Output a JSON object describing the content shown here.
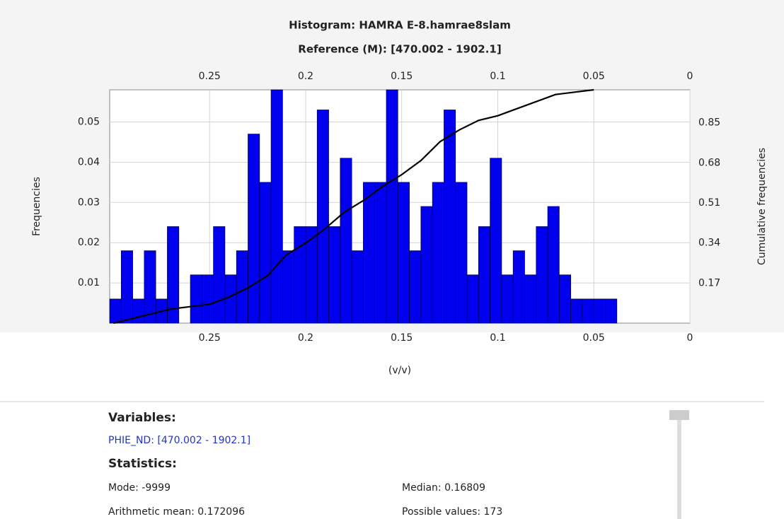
{
  "chart_data": {
    "type": "histogram",
    "title": "Histogram: HAMRA E-8.hamrae8slam",
    "subtitle": "Reference (M): [470.002 - 1902.1]",
    "xlabel": "(v/v)",
    "ylabel": "Frequencies",
    "y2label": "Cumulative frequencies",
    "bins": [
      0.302,
      0.296,
      0.29,
      0.284,
      0.278,
      0.272,
      0.266,
      0.26,
      0.254,
      0.248,
      0.242,
      0.236,
      0.23,
      0.224,
      0.218,
      0.212,
      0.206,
      0.2,
      0.194,
      0.188,
      0.182,
      0.176,
      0.17,
      0.164,
      0.158,
      0.152,
      0.146,
      0.14,
      0.134,
      0.128,
      0.122,
      0.116,
      0.11,
      0.104,
      0.098,
      0.092,
      0.086,
      0.08,
      0.074,
      0.068,
      0.062,
      0.056,
      0.05,
      0.044,
      0.038
    ],
    "values": [
      0.006,
      0.018,
      0.006,
      0.018,
      0.006,
      0.024,
      0,
      0.012,
      0.012,
      0.024,
      0.012,
      0.018,
      0.047,
      0.035,
      0.059,
      0.018,
      0.024,
      0.024,
      0.053,
      0.024,
      0.041,
      0.018,
      0.035,
      0.035,
      0.059,
      0.035,
      0.018,
      0.029,
      0.035,
      0.053,
      0.035,
      0.012,
      0.024,
      0.041,
      0.012,
      0.018,
      0.012,
      0.024,
      0.029,
      0.012,
      0.006,
      0.006,
      0.006,
      0.006
    ],
    "color": "#0000ee",
    "cumulative": {
      "axis": "y2",
      "color": "#000000",
      "x": [
        0.3,
        0.29,
        0.28,
        0.27,
        0.26,
        0.25,
        0.24,
        0.23,
        0.22,
        0.21,
        0.2,
        0.19,
        0.18,
        0.17,
        0.16,
        0.15,
        0.14,
        0.13,
        0.12,
        0.11,
        0.1,
        0.09,
        0.08,
        0.07,
        0.06,
        0.05
      ],
      "values": [
        0,
        0.02,
        0.04,
        0.06,
        0.07,
        0.08,
        0.11,
        0.15,
        0.2,
        0.29,
        0.34,
        0.4,
        0.47,
        0.52,
        0.58,
        0.63,
        0.69,
        0.77,
        0.82,
        0.86,
        0.88,
        0.91,
        0.94,
        0.97,
        0.98,
        0.99
      ]
    },
    "xlim": [
      0.302,
      0
    ],
    "xticks": [
      0.25,
      0.2,
      0.15,
      0.1,
      0.05,
      0
    ],
    "ylim": [
      0,
      0.058
    ],
    "yticks": [
      0.01,
      0.02,
      0.03,
      0.04,
      0.05
    ],
    "y2lim": [
      0,
      0.99
    ],
    "y2ticks": [
      0.17,
      0.34,
      0.51,
      0.68,
      0.85
    ],
    "grid": true
  },
  "panel": {
    "variables_heading": "Variables:",
    "variable": "PHIE_ND: [470.002 - 1902.1]",
    "statistics_heading": "Statistics:",
    "stats": [
      "Mode: -9999",
      "Median: 0.16809",
      "Arithmetic mean: 0.172096",
      "Possible values: 173"
    ]
  }
}
